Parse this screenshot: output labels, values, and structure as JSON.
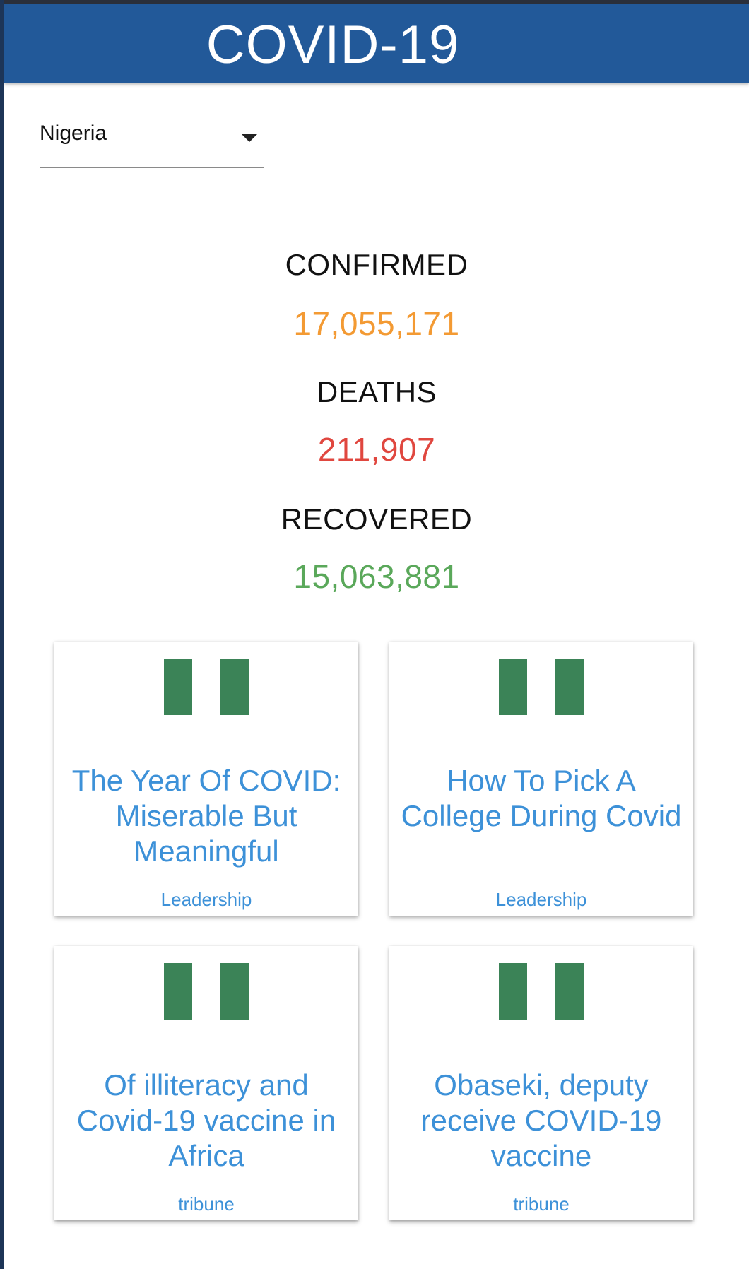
{
  "header": {
    "title": "COVID-19",
    "background_color": "#225999"
  },
  "country_select": {
    "value": "Nigeria",
    "icon": "caret-down-icon"
  },
  "stats": {
    "confirmed": {
      "label": "CONFIRMED",
      "value": "17,055,171",
      "color": "#f39a33"
    },
    "deaths": {
      "label": "DEATHS",
      "value": "211,907",
      "color": "#e0473f"
    },
    "recovered": {
      "label": "RECOVERED",
      "value": "15,063,881",
      "color": "#5aa85a"
    }
  },
  "news": [
    {
      "title": "The Year Of COVID: Miserable But Meaningful",
      "source": "Leadership",
      "image": "nigeria-flag-icon"
    },
    {
      "title": "How To Pick A College During Covid",
      "source": "Leadership",
      "image": "nigeria-flag-icon"
    },
    {
      "title": "Of illiteracy and Covid-19 vaccine in Africa",
      "source": "tribune",
      "image": "nigeria-flag-icon"
    },
    {
      "title": "Obaseki, deputy receive COVID-19 vaccine",
      "source": "tribune",
      "image": "nigeria-flag-icon"
    }
  ],
  "colors": {
    "link": "#3d91d8",
    "flag_green": "#3b8357"
  }
}
